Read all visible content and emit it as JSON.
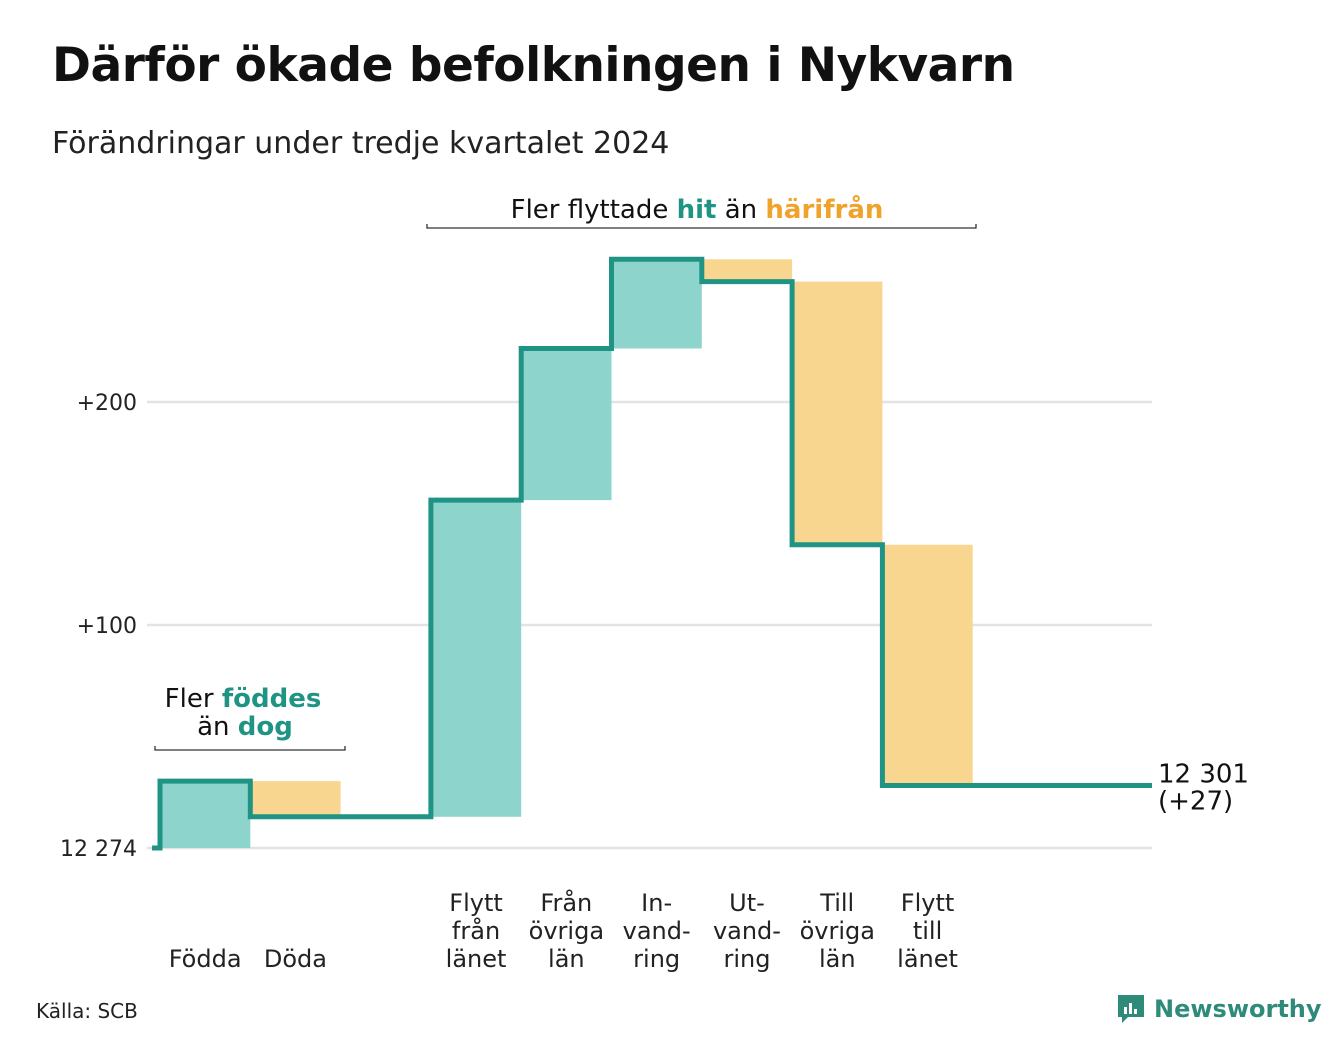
{
  "title": "Därför ökade befolkningen i Nykvarn",
  "subtitle": "Förändringar under tredje kvartalet 2024",
  "source": "Källa: SCB",
  "brand": "Newsworthy",
  "colors": {
    "increase_fill": "#8dd5cc",
    "decrease_fill": "#f9d68f",
    "step_line": "#1f9484",
    "grid": "#e3e3e3",
    "accent_teal": "#1f9484",
    "accent_orange": "#f0a32b"
  },
  "chart_data": {
    "type": "waterfall",
    "baseline": 12274,
    "baseline_label": "12 274",
    "yticks": [
      {
        "value": 100,
        "label": "+100"
      },
      {
        "value": 200,
        "label": "+200"
      }
    ],
    "ylim": [
      0,
      265
    ],
    "grid": true,
    "steps": [
      {
        "label": [
          "Födda"
        ],
        "change": 30,
        "kind": "increase"
      },
      {
        "label": [
          "Döda"
        ],
        "change": -16,
        "kind": "decrease"
      },
      {
        "label": [
          ""
        ],
        "change": 0,
        "kind": "none"
      },
      {
        "label": [
          "Flytt",
          "från",
          "länet"
        ],
        "change": 142,
        "kind": "increase"
      },
      {
        "label": [
          "Från",
          "övriga",
          "län"
        ],
        "change": 68,
        "kind": "increase"
      },
      {
        "label": [
          "In-",
          "vand-",
          "ring"
        ],
        "change": 40,
        "kind": "increase"
      },
      {
        "label": [
          "Ut-",
          "vand-",
          "ring"
        ],
        "change": -10,
        "kind": "decrease"
      },
      {
        "label": [
          "Till",
          "övriga",
          "län"
        ],
        "change": -118,
        "kind": "decrease"
      },
      {
        "label": [
          "Flytt",
          "till",
          "länet"
        ],
        "change": -108,
        "kind": "decrease"
      }
    ],
    "end_value": 12301,
    "end_labels": [
      "12 301",
      "(+27)"
    ],
    "annotations": {
      "births": {
        "line1_parts": [
          "Fler ",
          "föddes"
        ],
        "line2_parts": [
          "än ",
          "dog"
        ]
      },
      "moves": {
        "parts": [
          "Fler flyttade ",
          "hit",
          " än ",
          "härifrån"
        ]
      }
    }
  }
}
